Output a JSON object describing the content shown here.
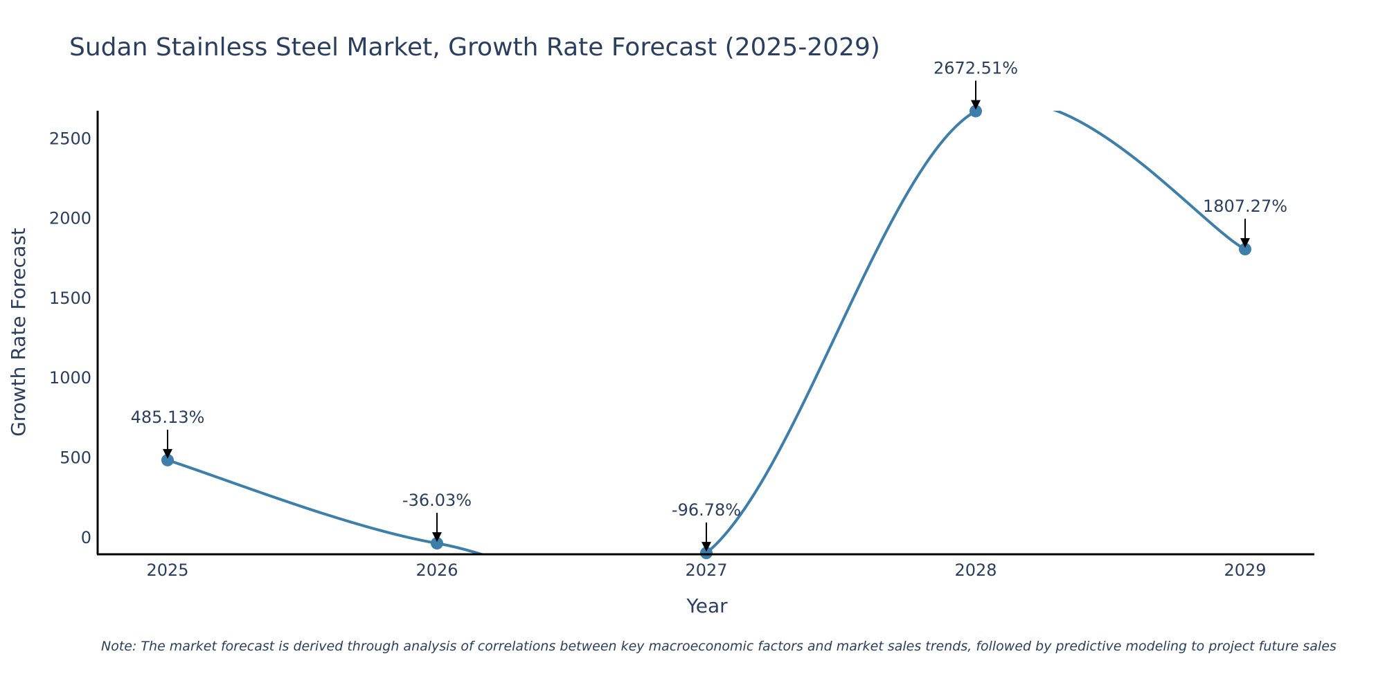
{
  "chart_data": {
    "type": "line",
    "title": "Sudan Stainless Steel Market, Growth Rate Forecast (2025-2029)",
    "xlabel": "Year",
    "ylabel": "Growth Rate Forecast",
    "categories": [
      "2025",
      "2026",
      "2027",
      "2028",
      "2029"
    ],
    "series": [
      {
        "name": "Growth Rate Forecast",
        "values": [
          485.13,
          -36.03,
          -96.78,
          2672.51,
          1807.27
        ]
      }
    ],
    "data_labels": [
      "485.13%",
      "-36.03%",
      "-96.78%",
      "2672.51%",
      "1807.27%"
    ],
    "ylim": [
      -105,
      2675
    ],
    "yticks": [
      0,
      500,
      1000,
      1500,
      2000,
      2500
    ],
    "ytick_labels": [
      "0",
      "500",
      "1000",
      "1500",
      "2000",
      "2500"
    ],
    "grid": false,
    "line_shape": "spline",
    "line_color": "#3d7eab",
    "annotation_color": "#000000"
  },
  "note": "Note: The market forecast is derived through analysis of correlations between key macroeconomic factors and market sales trends, followed by predictive modeling to project future sales"
}
